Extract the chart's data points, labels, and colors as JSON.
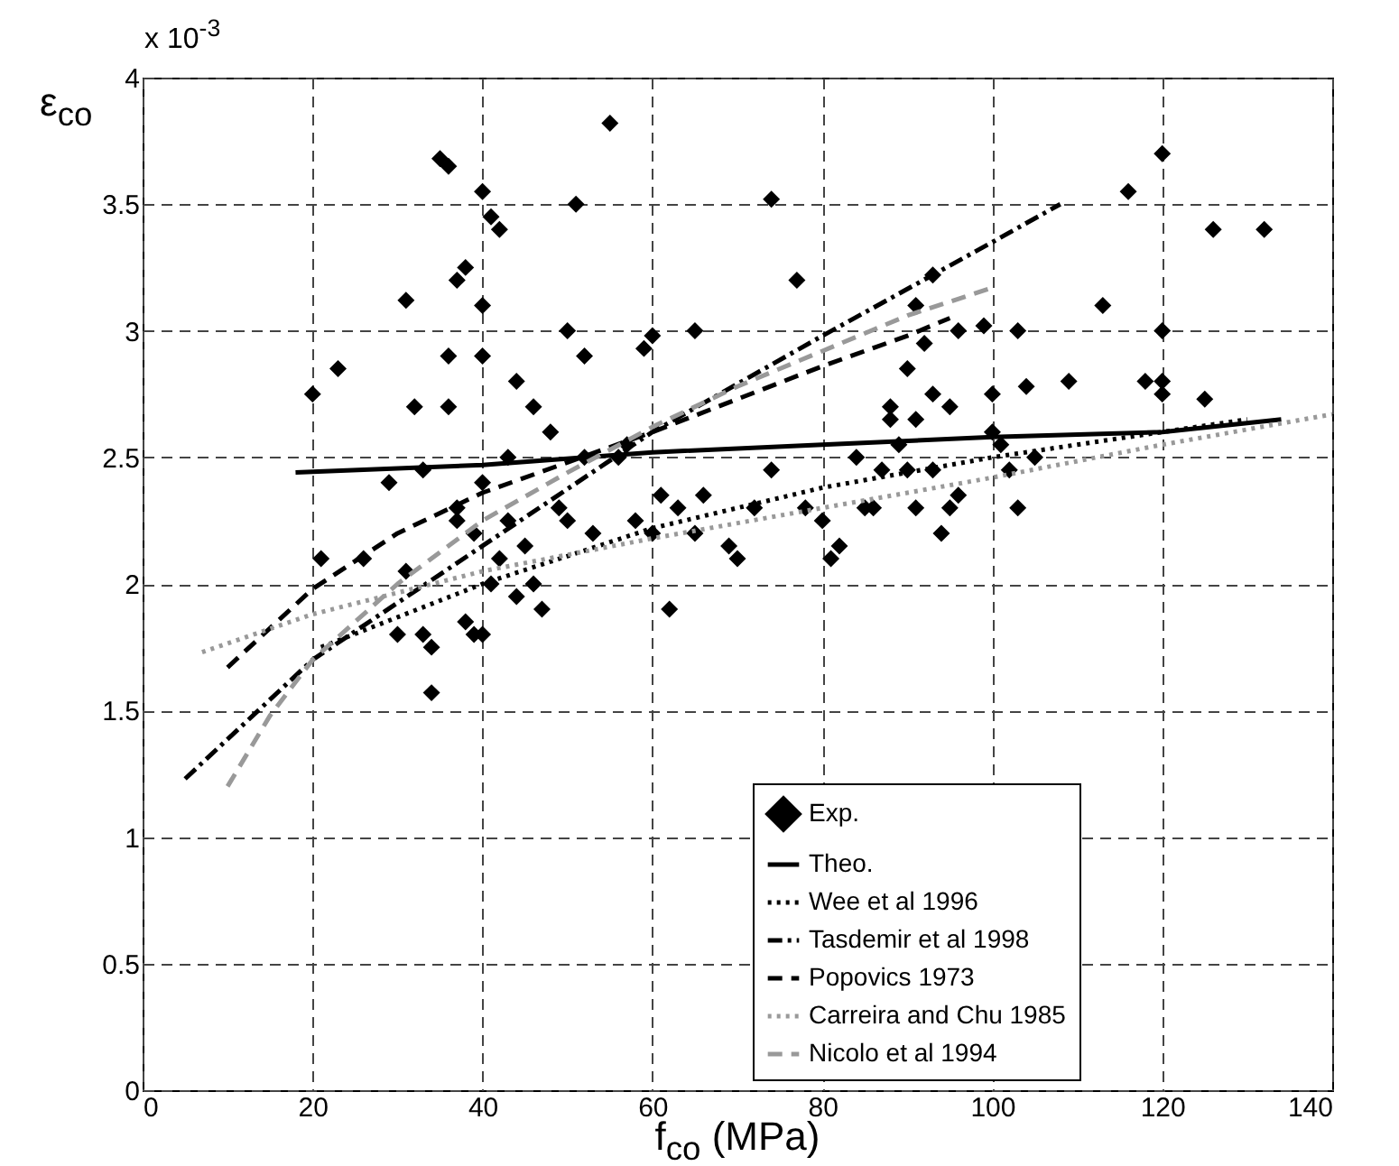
{
  "chart_data": {
    "type": "scatter",
    "xlabel": "f$_{co}$  (MPa)",
    "ylabel": "ε$_{co}$",
    "annotations": [
      "x 10$^{-3}$"
    ],
    "xlim": [
      0,
      140
    ],
    "xticks": [
      0,
      20,
      40,
      60,
      80,
      100,
      120,
      140
    ],
    "ylim": [
      0,
      4
    ],
    "yticks": [
      0,
      0.5,
      1,
      1.5,
      2,
      2.5,
      3,
      3.5,
      4
    ],
    "grid": true,
    "legend": "bottom right",
    "series": [
      {
        "name": "Exp.",
        "marker": "diamond",
        "color": "#000000",
        "x": [
          20,
          21,
          23,
          26,
          29,
          30,
          31,
          31,
          32,
          33,
          33,
          34,
          34,
          35,
          36,
          36,
          36,
          37,
          37,
          37,
          38,
          38,
          39,
          39,
          40,
          40,
          40,
          40,
          40,
          41,
          41,
          42,
          42,
          43,
          43,
          44,
          44,
          45,
          46,
          46,
          47,
          48,
          49,
          50,
          50,
          51,
          52,
          52,
          53,
          55,
          56,
          57,
          58,
          59,
          60,
          60,
          61,
          62,
          63,
          65,
          65,
          66,
          69,
          70,
          72,
          74,
          74,
          77,
          78,
          80,
          81,
          82,
          84,
          85,
          86,
          87,
          88,
          88,
          89,
          90,
          90,
          91,
          91,
          91,
          92,
          93,
          93,
          93,
          94,
          95,
          95,
          96,
          96,
          99,
          100,
          100,
          101,
          102,
          103,
          103,
          104,
          105,
          109,
          113,
          116,
          118,
          120,
          120,
          120,
          120,
          125,
          126,
          132
        ],
        "values": [
          2.75,
          2.1,
          2.85,
          2.1,
          2.4,
          1.8,
          3.12,
          2.05,
          2.7,
          2.45,
          1.8,
          1.75,
          1.57,
          3.68,
          3.65,
          2.9,
          2.7,
          3.2,
          2.3,
          2.25,
          3.25,
          1.85,
          2.2,
          1.8,
          3.55,
          3.1,
          2.9,
          2.4,
          1.8,
          2.0,
          3.45,
          3.4,
          2.1,
          2.25,
          2.5,
          2.8,
          1.95,
          2.15,
          2.7,
          2.0,
          1.9,
          2.6,
          2.3,
          3.0,
          2.25,
          3.5,
          2.9,
          2.5,
          2.2,
          3.82,
          2.5,
          2.55,
          2.25,
          2.93,
          2.98,
          2.2,
          2.35,
          1.9,
          2.3,
          3.0,
          2.2,
          2.35,
          2.15,
          2.1,
          2.3,
          3.52,
          2.45,
          3.2,
          2.3,
          2.25,
          2.1,
          2.15,
          2.5,
          2.3,
          2.3,
          2.45,
          2.7,
          2.65,
          2.55,
          2.85,
          2.45,
          3.1,
          2.65,
          2.3,
          2.95,
          3.22,
          2.75,
          2.45,
          2.2,
          2.3,
          2.7,
          3.0,
          2.35,
          3.02,
          2.75,
          2.6,
          2.55,
          2.45,
          2.3,
          3.0,
          2.78,
          2.5,
          2.8,
          3.1,
          3.55,
          2.8,
          3.7,
          3.0,
          2.8,
          2.75,
          2.73,
          3.4,
          3.4
        ]
      },
      {
        "name": "Theo.",
        "type": "line",
        "line_style": "solid",
        "color": "#000000",
        "x": [
          18,
          40,
          60,
          80,
          100,
          120,
          134
        ],
        "values": [
          2.44,
          2.47,
          2.52,
          2.55,
          2.58,
          2.6,
          2.65
        ]
      },
      {
        "name": "Wee et al 1996",
        "type": "line",
        "line_style": "dotted",
        "color": "#000000",
        "x": [
          21,
          40,
          60,
          80,
          100,
          120,
          130
        ],
        "values": [
          1.75,
          2.0,
          2.22,
          2.38,
          2.5,
          2.6,
          2.65
        ]
      },
      {
        "name": "Tasdemir et al 1998",
        "type": "line",
        "line_style": "dashdot",
        "color": "#000000",
        "x": [
          5,
          20,
          40,
          60,
          80,
          100,
          108
        ],
        "values": [
          1.23,
          1.7,
          2.15,
          2.6,
          2.98,
          3.35,
          3.5
        ]
      },
      {
        "name": "Popovics 1973",
        "type": "line",
        "line_style": "dashed",
        "color": "#000000",
        "x": [
          10,
          20,
          30,
          40,
          50,
          60,
          70,
          80,
          90,
          95
        ],
        "values": [
          1.67,
          1.98,
          2.2,
          2.36,
          2.48,
          2.6,
          2.73,
          2.86,
          2.98,
          3.05
        ]
      },
      {
        "name": "Carreira and Chu 1985",
        "type": "line",
        "line_style": "dotted",
        "color": "#999999",
        "x": [
          7,
          20,
          40,
          60,
          80,
          100,
          120,
          140
        ],
        "values": [
          1.73,
          1.88,
          2.05,
          2.18,
          2.3,
          2.42,
          2.55,
          2.67
        ]
      },
      {
        "name": "Nicolo et al 1994",
        "type": "line",
        "line_style": "dashed",
        "color": "#999999",
        "x": [
          10,
          15,
          20,
          30,
          40,
          50,
          60,
          70,
          80,
          90,
          100
        ],
        "values": [
          1.2,
          1.48,
          1.7,
          2.0,
          2.25,
          2.44,
          2.62,
          2.78,
          2.92,
          3.06,
          3.17
        ]
      }
    ]
  }
}
